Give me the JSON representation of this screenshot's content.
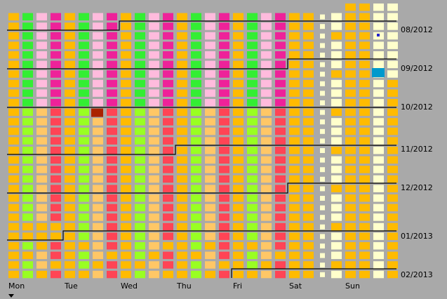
{
  "months": [
    "08/2012",
    "09/2012",
    "10/2012",
    "11/2012",
    "12/2012",
    "01/2013",
    "02/2013"
  ],
  "days": [
    "Mon",
    "Tue",
    "Wed",
    "Thu",
    "Fri",
    "Sat",
    "Sun"
  ]
}
